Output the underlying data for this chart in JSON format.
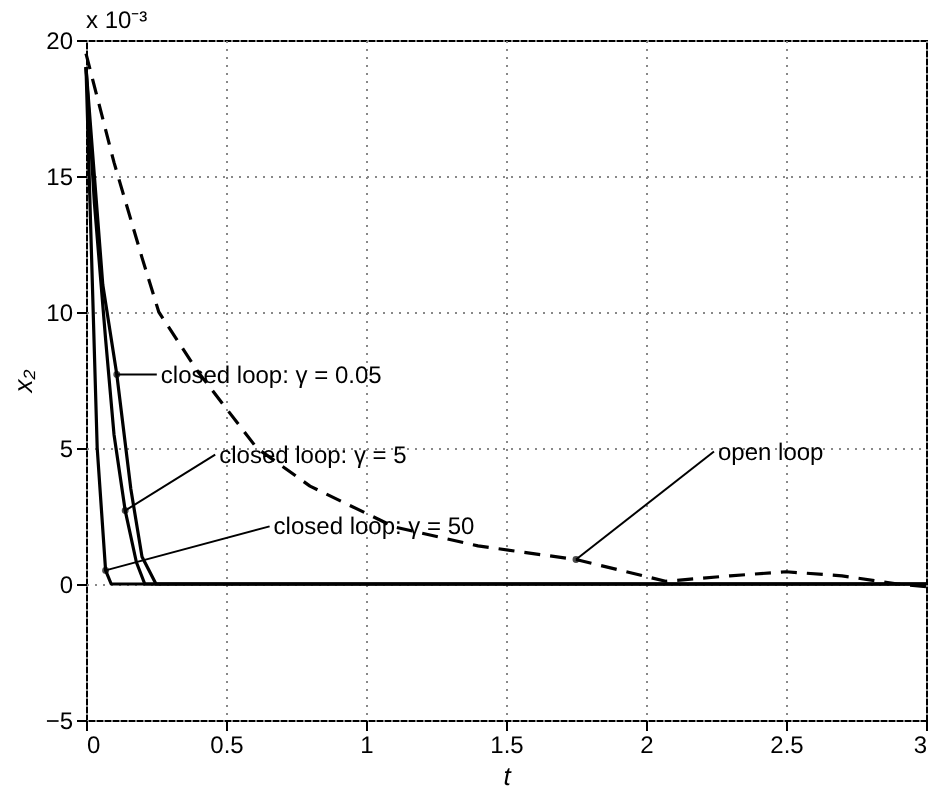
{
  "chart_data": {
    "type": "line",
    "xlabel": "t",
    "ylabel": "x₂",
    "xlim": [
      0,
      3
    ],
    "xticks": [
      0,
      0.5,
      1,
      1.5,
      2,
      2.5,
      3
    ],
    "ylim": [
      -5,
      20
    ],
    "yticks": [
      -5,
      0,
      5,
      10,
      15,
      20
    ],
    "grid": true,
    "marker": "none",
    "series": [
      {
        "color": "#000000",
        "line_style": "dashed",
        "x": [
          0,
          0.1,
          0.2,
          0.26,
          0.4,
          0.61,
          0.8,
          1.1,
          1.4,
          1.75,
          2.07,
          2.3,
          2.5,
          2.7,
          2.9,
          3
        ],
        "values": [
          19.5,
          15.5,
          12,
          10,
          7.8,
          5,
          3.6,
          2.1,
          1.4,
          0.9,
          0.1,
          0.3,
          0.45,
          0.3,
          0,
          -0.1
        ]
      },
      {
        "color": "#000000",
        "line_style": "solid",
        "x": [
          0,
          0.03,
          0.06,
          0.11,
          0.16,
          0.2,
          0.25,
          3
        ],
        "values": [
          19,
          15,
          11,
          7.7,
          3.5,
          1,
          0,
          0
        ]
      },
      {
        "color": "#000000",
        "line_style": "solid",
        "x": [
          0,
          0.03,
          0.07,
          0.1,
          0.14,
          0.18,
          0.21,
          3
        ],
        "values": [
          19,
          14,
          9,
          5.5,
          2.7,
          0.8,
          0,
          0
        ]
      },
      {
        "color": "#000000",
        "line_style": "solid",
        "x": [
          0,
          0.02,
          0.04,
          0.07,
          0.09,
          3
        ],
        "values": [
          19,
          12,
          5,
          0.5,
          0,
          0
        ]
      }
    ],
    "annotations": [
      {
        "text": "closed loop: γ = 0.05",
        "x": 0.11,
        "y": 7.7
      },
      {
        "text": "closed loop: γ = 5",
        "x": 0.14,
        "y": 2.7
      },
      {
        "text": "closed loop: γ = 50",
        "x": 0.07,
        "y": 0.5
      },
      {
        "text": "open loop",
        "x": 1.75,
        "y": 0.9
      },
      "x 10⁻³"
    ]
  }
}
